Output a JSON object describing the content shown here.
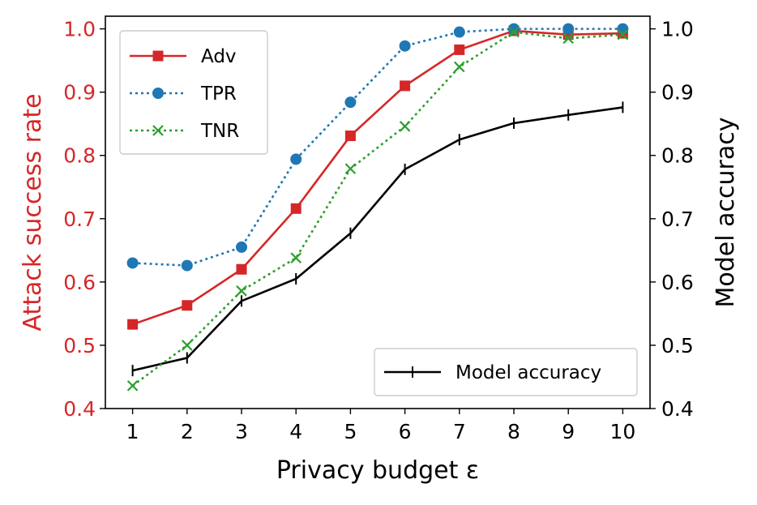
{
  "chart_data": {
    "type": "line",
    "x": [
      1,
      2,
      3,
      4,
      5,
      6,
      7,
      8,
      9,
      10
    ],
    "xlabel": "Privacy budget ε",
    "xlim": [
      0.5,
      10.5
    ],
    "x_ticks": [
      "1",
      "2",
      "3",
      "4",
      "5",
      "6",
      "7",
      "8",
      "9",
      "10"
    ],
    "left_axis": {
      "label": "Attack success rate",
      "color": "#d62728",
      "ylim": [
        0.4,
        1.02
      ],
      "ticks": [
        "0.4",
        "0.5",
        "0.6",
        "0.7",
        "0.8",
        "0.9",
        "1.0"
      ]
    },
    "right_axis": {
      "label": "Model accuracy",
      "color": "#000000",
      "ylim": [
        0.4,
        1.02
      ],
      "ticks": [
        "0.4",
        "0.5",
        "0.6",
        "0.7",
        "0.8",
        "0.9",
        "1.0"
      ]
    },
    "series": [
      {
        "name": "Adv",
        "axis": "left",
        "color": "#d62728",
        "marker": "square",
        "style": "solid",
        "values": [
          0.533,
          0.563,
          0.62,
          0.716,
          0.831,
          0.91,
          0.967,
          0.997,
          0.991,
          0.993
        ]
      },
      {
        "name": "TPR",
        "axis": "left",
        "color": "#1f77b4",
        "marker": "circle",
        "style": "dotted",
        "values": [
          0.63,
          0.626,
          0.655,
          0.794,
          0.884,
          0.973,
          0.995,
          1.0,
          1.0,
          1.0
        ]
      },
      {
        "name": "TNR",
        "axis": "left",
        "color": "#2ca02c",
        "marker": "x",
        "style": "dotted",
        "values": [
          0.436,
          0.5,
          0.586,
          0.638,
          0.779,
          0.846,
          0.94,
          0.995,
          0.985,
          0.991
        ]
      },
      {
        "name": "Model accuracy",
        "axis": "right",
        "color": "#000000",
        "marker": "vline",
        "style": "solid",
        "values": [
          0.46,
          0.48,
          0.57,
          0.605,
          0.677,
          0.778,
          0.825,
          0.851,
          0.864,
          0.876
        ]
      }
    ],
    "legends": [
      {
        "position": "top-left",
        "entries": [
          "Adv",
          "TPR",
          "TNR"
        ]
      },
      {
        "position": "bottom-right",
        "entries": [
          "Model accuracy"
        ]
      }
    ]
  }
}
